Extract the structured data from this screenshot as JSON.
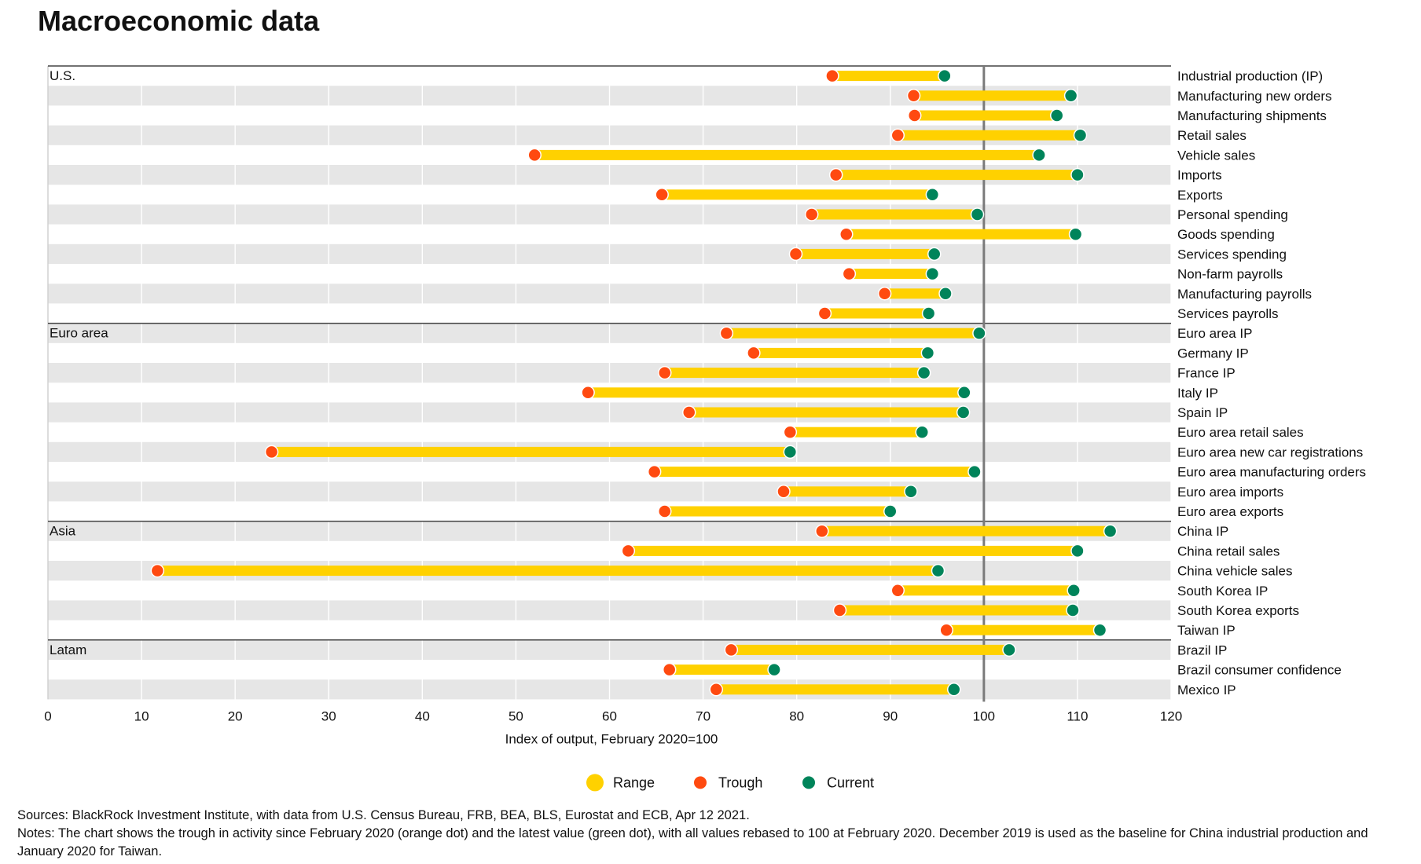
{
  "title": "Macroeconomic data",
  "chart_data": {
    "type": "range-dot",
    "orientation": "horizontal",
    "xlabel": "Index of output, February 2020=100",
    "xlim": [
      0,
      120
    ],
    "xticks": [
      0,
      10,
      20,
      30,
      40,
      50,
      60,
      70,
      80,
      90,
      100,
      110,
      120
    ],
    "reference_line": 100,
    "grid": "vertical",
    "legend": {
      "placement": "bottom-center",
      "items": [
        {
          "label": "Range",
          "color": "#FFD100"
        },
        {
          "label": "Trough",
          "color": "#FF4A10"
        },
        {
          "label": "Current",
          "color": "#00845A"
        }
      ]
    },
    "groups": [
      {
        "name": "U.S.",
        "rows": [
          {
            "label": "Industrial production (IP)",
            "trough": 83.8,
            "current": 95.8
          },
          {
            "label": "Manufacturing new orders",
            "trough": 92.5,
            "current": 109.3
          },
          {
            "label": "Manufacturing shipments",
            "trough": 92.6,
            "current": 107.8
          },
          {
            "label": "Retail sales",
            "trough": 90.8,
            "current": 110.3
          },
          {
            "label": "Vehicle sales",
            "trough": 52.0,
            "current": 105.9
          },
          {
            "label": "Imports",
            "trough": 84.2,
            "current": 110.0
          },
          {
            "label": "Exports",
            "trough": 65.6,
            "current": 94.5
          },
          {
            "label": "Personal spending",
            "trough": 81.6,
            "current": 99.3
          },
          {
            "label": "Goods spending",
            "trough": 85.3,
            "current": 109.8
          },
          {
            "label": "Services spending",
            "trough": 79.9,
            "current": 94.7
          },
          {
            "label": "Non-farm payrolls",
            "trough": 85.6,
            "current": 94.5
          },
          {
            "label": "Manufacturing payrolls",
            "trough": 89.4,
            "current": 95.9
          },
          {
            "label": "Services payrolls",
            "trough": 83.0,
            "current": 94.1
          }
        ]
      },
      {
        "name": "Euro area",
        "rows": [
          {
            "label": "Euro area IP",
            "trough": 72.5,
            "current": 99.5
          },
          {
            "label": "Germany IP",
            "trough": 75.4,
            "current": 94.0
          },
          {
            "label": "France IP",
            "trough": 65.9,
            "current": 93.6
          },
          {
            "label": "Italy IP",
            "trough": 57.7,
            "current": 97.9
          },
          {
            "label": "Spain IP",
            "trough": 68.5,
            "current": 97.8
          },
          {
            "label": "Euro area retail sales",
            "trough": 79.3,
            "current": 93.4
          },
          {
            "label": "Euro area new car registrations",
            "trough": 23.9,
            "current": 79.3
          },
          {
            "label": "Euro area manufacturing orders",
            "trough": 64.8,
            "current": 99.0
          },
          {
            "label": "Euro area imports",
            "trough": 78.6,
            "current": 92.2
          },
          {
            "label": "Euro area exports",
            "trough": 65.9,
            "current": 90.0
          }
        ]
      },
      {
        "name": "Asia",
        "rows": [
          {
            "label": "China IP",
            "trough": 82.7,
            "current": 113.5
          },
          {
            "label": "China retail sales",
            "trough": 62.0,
            "current": 110.0
          },
          {
            "label": "China vehicle sales",
            "trough": 11.7,
            "current": 95.1
          },
          {
            "label": "South Korea IP",
            "trough": 90.8,
            "current": 109.6
          },
          {
            "label": "South Korea exports",
            "trough": 84.6,
            "current": 109.5
          },
          {
            "label": "Taiwan IP",
            "trough": 96.0,
            "current": 112.4
          }
        ]
      },
      {
        "name": "Latam",
        "rows": [
          {
            "label": "Brazil IP",
            "trough": 73.0,
            "current": 102.7
          },
          {
            "label": "Brazil consumer confidence",
            "trough": 66.4,
            "current": 77.6
          },
          {
            "label": "Mexico IP",
            "trough": 71.4,
            "current": 96.8
          }
        ]
      }
    ]
  },
  "notes": {
    "sources": "Sources: BlackRock Investment Institute, with data from U.S. Census Bureau, FRB, BEA, BLS, Eurostat and ECB, Apr 12 2021.",
    "notes": "Notes: The chart shows the trough in activity since February 2020 (orange dot) and the latest value (green dot), with all values rebased to 100 at February 2020. December 2019 is used as the baseline for China industrial production and January 2020 for Taiwan."
  }
}
